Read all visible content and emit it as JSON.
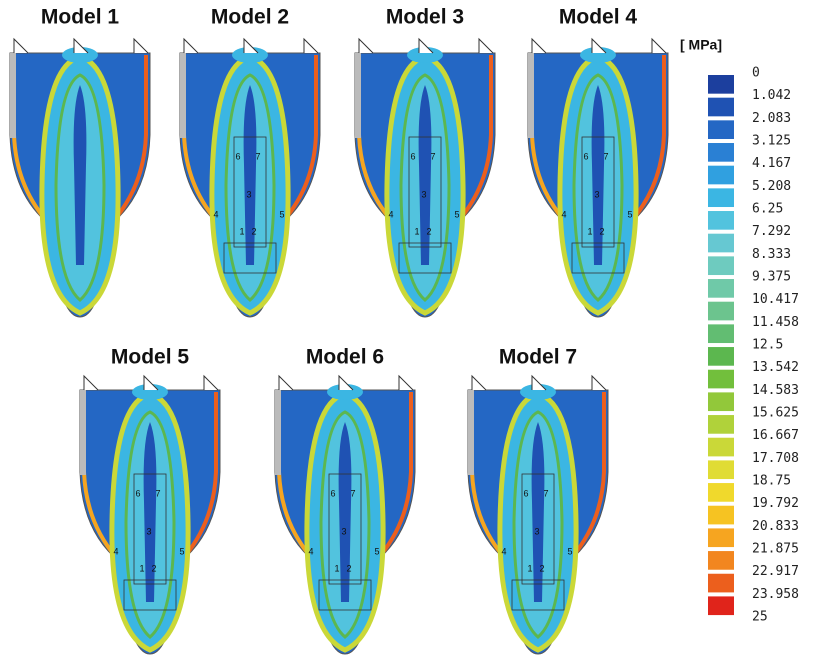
{
  "figure": {
    "panels": [
      {
        "title": "Model 1",
        "labels": []
      },
      {
        "title": "Model 2",
        "labels": [
          "1",
          "2",
          "3",
          "4",
          "5",
          "6",
          "7"
        ]
      },
      {
        "title": "Model 3",
        "labels": [
          "1",
          "2",
          "3",
          "4",
          "5",
          "6",
          "7"
        ]
      },
      {
        "title": "Model 4",
        "labels": [
          "1",
          "2",
          "3",
          "4",
          "5",
          "6",
          "7"
        ]
      },
      {
        "title": "Model 5",
        "labels": [
          "1",
          "2",
          "3",
          "4",
          "5",
          "6",
          "7"
        ]
      },
      {
        "title": "Model 6",
        "labels": [
          "1",
          "2",
          "3",
          "4",
          "5",
          "6",
          "7"
        ]
      },
      {
        "title": "Model 7",
        "labels": [
          "1",
          "2",
          "3",
          "4",
          "5",
          "6",
          "7"
        ]
      }
    ],
    "legend": {
      "unit": "[ MPa]",
      "levels": [
        0,
        1.042,
        2.083,
        3.125,
        4.167,
        5.208,
        6.25,
        7.292,
        8.333,
        9.375,
        10.417,
        11.458,
        12.5,
        13.542,
        14.583,
        15.625,
        16.667,
        17.708,
        18.75,
        19.792,
        20.833,
        21.875,
        22.917,
        23.958,
        25
      ],
      "colors": [
        "#1c3f9e",
        "#1f52b3",
        "#2467c4",
        "#2a80d4",
        "#30a0e0",
        "#3bb6e3",
        "#52c3de",
        "#66c8d2",
        "#6ecbbf",
        "#6fc9a8",
        "#6cc48e",
        "#62bd72",
        "#5cb74f",
        "#72bf3c",
        "#92c83a",
        "#b0d23a",
        "#cad838",
        "#e0dc34",
        "#f0d92c",
        "#f6c322",
        "#f6a520",
        "#f2861f",
        "#ec5f1d",
        "#e0241b"
      ]
    }
  }
}
